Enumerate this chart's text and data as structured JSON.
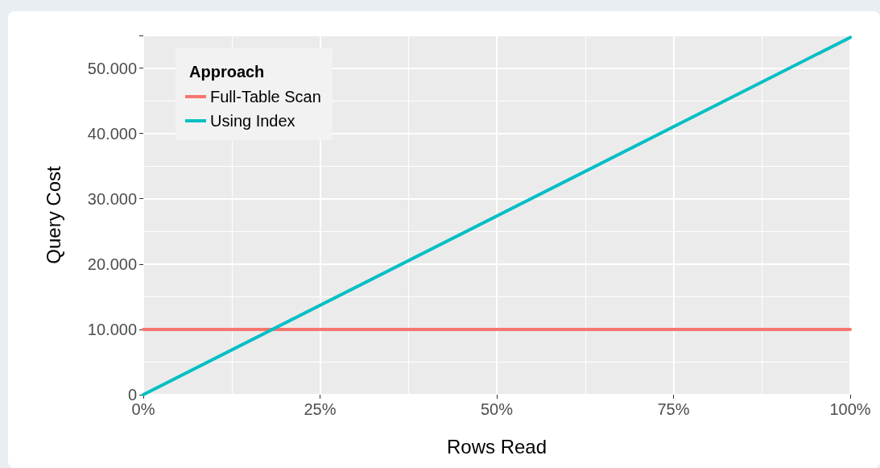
{
  "chart_data": {
    "type": "line",
    "xlabel": "Rows Read",
    "ylabel": "Query Cost",
    "legend_title": "Approach",
    "xlim": [
      0,
      100
    ],
    "ylim": [
      0,
      55000
    ],
    "xticks": [
      {
        "value": 0,
        "label": "0%"
      },
      {
        "value": 25,
        "label": "25%"
      },
      {
        "value": 50,
        "label": "50%"
      },
      {
        "value": 75,
        "label": "75%"
      },
      {
        "value": 100,
        "label": "100%"
      }
    ],
    "yticks": [
      0,
      {
        "value": 10000,
        "label": "10.000"
      },
      {
        "value": 20000,
        "label": "20.000"
      },
      {
        "value": 30000,
        "label": "30.000"
      },
      {
        "value": 40000,
        "label": "40.000"
      },
      {
        "value": 50000,
        "label": "50.000"
      }
    ],
    "x": [
      0,
      100
    ],
    "series": [
      {
        "name": "Full-Table Scan",
        "color": "#f8766d",
        "values": [
          10000,
          10000
        ]
      },
      {
        "name": "Using Index",
        "color": "#00bfc4",
        "values": [
          0,
          54700
        ]
      }
    ],
    "grid": true,
    "legend": "top left",
    "marker": "none",
    "line_style": "solid"
  }
}
